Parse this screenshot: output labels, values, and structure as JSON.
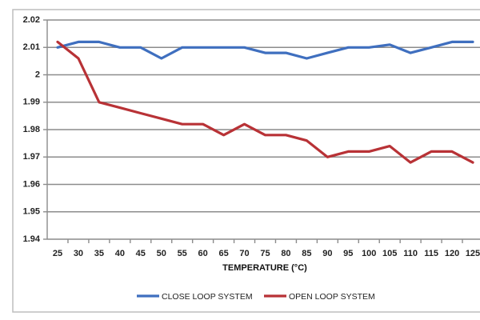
{
  "chart_data": {
    "type": "line",
    "title": "",
    "xlabel": "TEMPERATURE (°C)",
    "ylabel": "",
    "x": [
      25,
      30,
      35,
      40,
      45,
      50,
      55,
      60,
      65,
      70,
      75,
      80,
      85,
      90,
      95,
      100,
      105,
      110,
      115,
      120,
      125
    ],
    "x_tick_labels": [
      "25",
      "30",
      "35",
      "40",
      "45",
      "50",
      "55",
      "60",
      "65",
      "70",
      "75",
      "80",
      "85",
      "90",
      "95",
      "100",
      "105",
      "110",
      "115",
      "120",
      "125"
    ],
    "ylim": [
      1.94,
      2.02
    ],
    "y_ticks": [
      1.94,
      1.95,
      1.96,
      1.97,
      1.98,
      1.99,
      2.0,
      2.01,
      2.02
    ],
    "y_tick_labels": [
      "1.94",
      "1.95",
      "1.96",
      "1.97",
      "1.98",
      "1.99",
      "2",
      "2.01",
      "2.02"
    ],
    "grid": true,
    "legend_position": "bottom",
    "series": [
      {
        "name": "CLOSE LOOP SYSTEM",
        "color": "#3f6fbf",
        "values": [
          2.01,
          2.012,
          2.012,
          2.01,
          2.01,
          2.006,
          2.01,
          2.01,
          2.01,
          2.01,
          2.008,
          2.008,
          2.006,
          2.008,
          2.01,
          2.01,
          2.011,
          2.008,
          2.01,
          2.012,
          2.012
        ]
      },
      {
        "name": "OPEN LOOP SYSTEM",
        "color": "#b83236",
        "values": [
          2.012,
          2.006,
          1.99,
          1.988,
          1.986,
          1.984,
          1.982,
          1.982,
          1.978,
          1.982,
          1.978,
          1.978,
          1.976,
          1.97,
          1.972,
          1.972,
          1.974,
          1.968,
          1.972,
          1.972,
          1.968
        ]
      }
    ]
  }
}
